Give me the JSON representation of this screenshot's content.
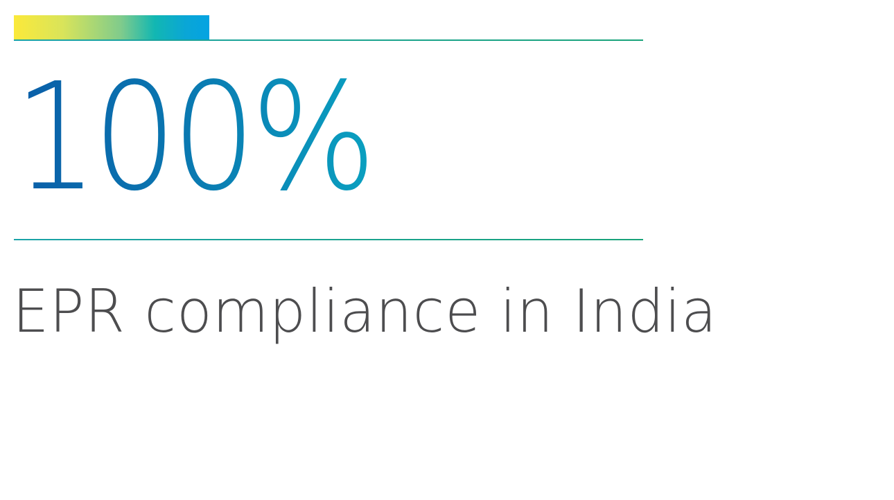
{
  "stat": {
    "value": "100%"
  },
  "caption": {
    "text": "EPR compliance in India"
  },
  "colors": {
    "accent_gradient": [
      "#fbe93a",
      "#7fcb8c",
      "#12b7b2",
      "#04a3e2"
    ],
    "rule": "#19a37a",
    "stat_gradient": [
      "#0a5ea8",
      "#0aa0c0"
    ],
    "caption_text": "#4d4d4f",
    "background": "#ffffff"
  }
}
